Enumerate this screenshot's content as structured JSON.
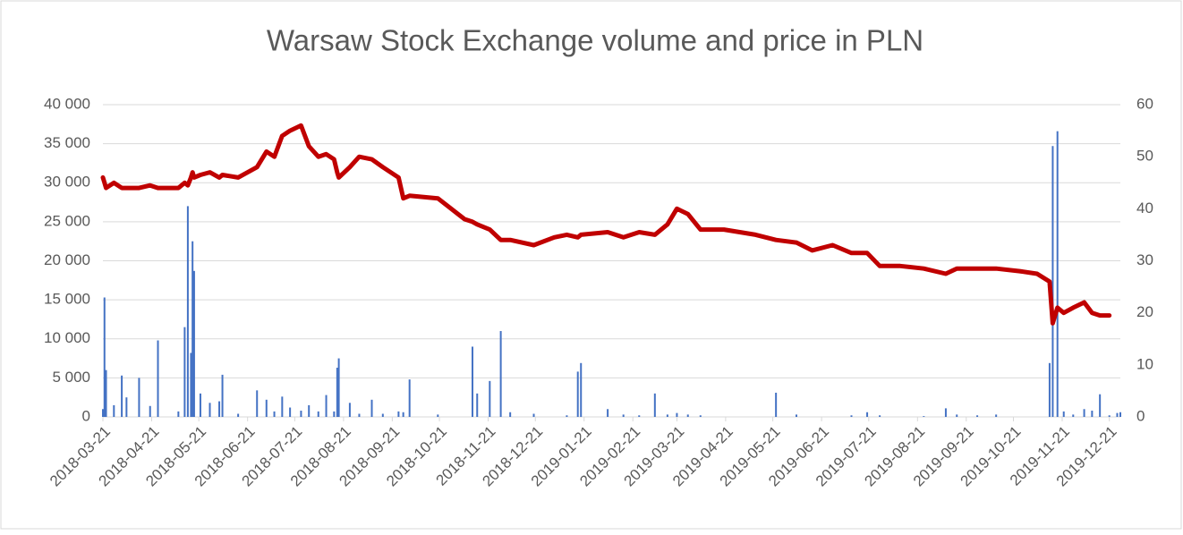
{
  "chart_data": {
    "type": "bar-line",
    "title": "Warsaw Stock Exchange volume and price in PLN",
    "x": [
      "2018-03-21",
      "2018-03-22",
      "2018-03-23",
      "2018-03-28",
      "2018-04-02",
      "2018-04-05",
      "2018-04-13",
      "2018-04-20",
      "2018-04-25",
      "2018-05-08",
      "2018-05-12",
      "2018-05-14",
      "2018-05-16",
      "2018-05-17",
      "2018-05-18",
      "2018-05-22",
      "2018-05-28",
      "2018-06-03",
      "2018-06-05",
      "2018-06-15",
      "2018-06-27",
      "2018-07-03",
      "2018-07-08",
      "2018-07-13",
      "2018-07-18",
      "2018-07-25",
      "2018-07-30",
      "2018-08-05",
      "2018-08-10",
      "2018-08-15",
      "2018-08-17",
      "2018-08-18",
      "2018-08-25",
      "2018-08-31",
      "2018-09-08",
      "2018-09-15",
      "2018-09-25",
      "2018-09-28",
      "2018-10-02",
      "2018-10-20",
      "2018-11-06",
      "2018-11-11",
      "2018-11-14",
      "2018-11-22",
      "2018-11-29",
      "2018-12-05",
      "2018-12-20",
      "2019-01-02",
      "2019-01-10",
      "2019-01-17",
      "2019-01-19",
      "2019-02-05",
      "2019-02-15",
      "2019-02-25",
      "2019-03-07",
      "2019-03-15",
      "2019-03-21",
      "2019-03-28",
      "2019-04-05",
      "2019-04-20",
      "2019-05-10",
      "2019-05-23",
      "2019-06-05",
      "2019-06-15",
      "2019-06-28",
      "2019-07-10",
      "2019-07-20",
      "2019-07-28",
      "2019-08-10",
      "2019-08-25",
      "2019-09-08",
      "2019-09-15",
      "2019-09-28",
      "2019-10-10",
      "2019-10-25",
      "2019-11-05",
      "2019-11-13",
      "2019-11-15",
      "2019-11-18",
      "2019-11-22",
      "2019-11-28",
      "2019-12-05",
      "2019-12-10",
      "2019-12-15",
      "2019-12-21",
      "2019-12-26",
      "2019-12-28"
    ],
    "series": [
      {
        "name": "Volume",
        "type": "bar",
        "axis": "y",
        "color": "#4472c4",
        "values": [
          1000,
          15300,
          6000,
          1500,
          5300,
          2500,
          5000,
          1400,
          9800,
          700,
          11500,
          27000,
          8200,
          22500,
          18700,
          3000,
          1800,
          2000,
          5400,
          400,
          3400,
          2200,
          700,
          2600,
          1200,
          800,
          1500,
          700,
          2800,
          700,
          6300,
          7500,
          1800,
          400,
          2200,
          400,
          700,
          600,
          4800,
          300,
          0,
          9000,
          3000,
          4600,
          11000,
          600,
          400,
          0,
          200,
          5800,
          6900,
          1000,
          300,
          200,
          3000,
          300,
          500,
          300,
          200,
          0,
          0,
          3100,
          300,
          0,
          0,
          200,
          600,
          200,
          0,
          100,
          1100,
          300,
          200,
          300,
          0,
          0,
          6900,
          34700,
          36600,
          700,
          300,
          1000,
          800,
          2900,
          200,
          500,
          600
        ]
      },
      {
        "name": "Price",
        "type": "line",
        "axis": "y2",
        "color": "#c00000",
        "values": [
          46,
          45,
          44,
          45,
          44,
          44,
          44,
          44.5,
          44,
          44,
          45,
          44.5,
          46,
          47,
          46,
          46.5,
          47,
          46,
          46.5,
          46,
          48,
          51,
          50,
          54,
          55,
          56,
          52,
          50,
          50.5,
          49.5,
          47,
          46,
          48,
          50,
          49.5,
          48,
          46,
          42,
          42.5,
          42,
          38,
          37.5,
          37,
          36,
          34,
          34,
          33,
          34.5,
          35,
          34.5,
          35,
          35.5,
          34.5,
          35.5,
          35,
          37,
          40,
          39,
          36,
          36,
          35,
          34,
          33.5,
          32,
          33,
          31.5,
          31.5,
          29,
          29,
          28.5,
          27.5,
          28.5,
          28.5,
          28.5,
          28,
          27.5,
          26,
          18,
          21,
          20,
          21,
          22,
          20,
          19.5,
          19.5,
          null,
          null
        ]
      }
    ],
    "xlim": [
      "2018-03-21",
      "2019-12-28"
    ],
    "xticks": [
      "2018-03-21",
      "2018-04-21",
      "2018-05-21",
      "2018-06-21",
      "2018-07-21",
      "2018-08-21",
      "2018-09-21",
      "2018-10-21",
      "2018-11-21",
      "2018-12-21",
      "2019-01-21",
      "2019-02-21",
      "2019-03-21",
      "2019-04-21",
      "2019-05-21",
      "2019-06-21",
      "2019-07-21",
      "2019-08-21",
      "2019-09-21",
      "2019-10-21",
      "2019-11-21",
      "2019-12-21"
    ],
    "ylim": [
      0,
      40000
    ],
    "yticks": [
      0,
      {
        "value": 5000,
        "label": "5 000"
      },
      {
        "value": 10000,
        "label": "10 000"
      },
      {
        "value": 15000,
        "label": "15 000"
      },
      {
        "value": 20000,
        "label": "20 000"
      },
      {
        "value": 25000,
        "label": "25 000"
      },
      {
        "value": 30000,
        "label": "30 000"
      },
      {
        "value": 35000,
        "label": "35 000"
      },
      {
        "value": 40000,
        "label": "40 000"
      }
    ],
    "y2lim": [
      0,
      60
    ],
    "y2ticks": [
      0,
      10,
      20,
      30,
      40,
      50,
      60
    ],
    "grid": true
  }
}
